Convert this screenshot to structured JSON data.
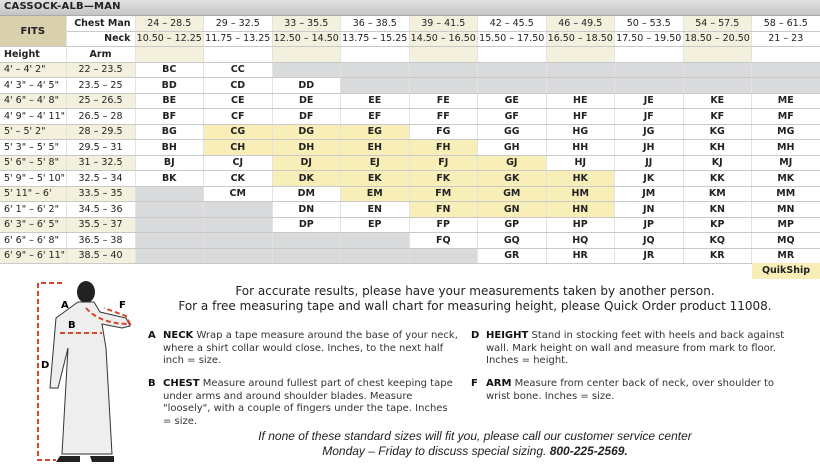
{
  "title": "CASSOCK-ALB—MAN",
  "colors": {
    "tan": "#f4f0de",
    "fits": "#d9d0ae",
    "quikship": "#f8efb8",
    "unavailable": "#d9dadc",
    "dashed_line": "#d9472b"
  },
  "table": {
    "fits_label": "FITS",
    "chest_label": "Chest Man",
    "neck_label": "Neck",
    "height_label": "Height",
    "arm_label": "Arm",
    "chest": [
      "24 – 28.5",
      "29 – 32.5",
      "33 – 35.5",
      "36 – 38.5",
      "39 – 41.5",
      "42 – 45.5",
      "46 – 49.5",
      "50 – 53.5",
      "54 – 57.5",
      "58 – 61.5"
    ],
    "neck": [
      "10.50 – 12.25",
      "11.75 – 13.25",
      "12.50 – 14.50",
      "13.75 – 15.25",
      "14.50 – 16.50",
      "15.50 – 17.50",
      "16.50 – 18.50",
      "17.50 – 19.50",
      "18.50 – 20.50",
      "21 – 23"
    ],
    "rows": [
      {
        "height": "4' – 4' 2\"",
        "arm": "22 – 23.5",
        "sizes": [
          "BC",
          "CC",
          null,
          null,
          null,
          null,
          null,
          null,
          null,
          null
        ]
      },
      {
        "height": "4' 3\" – 4' 5\"",
        "arm": "23.5 – 25",
        "sizes": [
          "BD",
          "CD",
          "DD",
          null,
          null,
          null,
          null,
          null,
          null,
          null
        ]
      },
      {
        "height": "4' 6\" – 4' 8\"",
        "arm": "25 – 26.5",
        "sizes": [
          "BE",
          "CE",
          "DE",
          "EE",
          "FE",
          "GE",
          "HE",
          "JE",
          "KE",
          "ME"
        ]
      },
      {
        "height": "4' 9\" – 4' 11\"",
        "arm": "26.5 – 28",
        "sizes": [
          "BF",
          "CF",
          "DF",
          "EF",
          "FF",
          "GF",
          "HF",
          "JF",
          "KF",
          "MF"
        ]
      },
      {
        "height": "5' – 5' 2\"",
        "arm": "28 – 29.5",
        "sizes": [
          "BG",
          "CG",
          "DG",
          "EG",
          "FG",
          "GG",
          "HG",
          "JG",
          "KG",
          "MG"
        ]
      },
      {
        "height": "5' 3\" – 5' 5\"",
        "arm": "29.5 – 31",
        "sizes": [
          "BH",
          "CH",
          "DH",
          "EH",
          "FH",
          "GH",
          "HH",
          "JH",
          "KH",
          "MH"
        ]
      },
      {
        "height": "5' 6\" – 5' 8\"",
        "arm": "31 – 32.5",
        "sizes": [
          "BJ",
          "CJ",
          "DJ",
          "EJ",
          "FJ",
          "GJ",
          "HJ",
          "JJ",
          "KJ",
          "MJ"
        ]
      },
      {
        "height": "5' 9\" – 5' 10\"",
        "arm": "32.5 – 34",
        "sizes": [
          "BK",
          "CK",
          "DK",
          "EK",
          "FK",
          "GK",
          "HK",
          "JK",
          "KK",
          "MK"
        ]
      },
      {
        "height": "5' 11\" – 6'",
        "arm": "33.5 – 35",
        "sizes": [
          null,
          "CM",
          "DM",
          "EM",
          "FM",
          "GM",
          "HM",
          "JM",
          "KM",
          "MM"
        ]
      },
      {
        "height": "6' 1\" – 6' 2\"",
        "arm": "34.5 – 36",
        "sizes": [
          null,
          null,
          "DN",
          "EN",
          "FN",
          "GN",
          "HN",
          "JN",
          "KN",
          "MN"
        ]
      },
      {
        "height": "6' 3\" – 6' 5\"",
        "arm": "35.5 – 37",
        "sizes": [
          null,
          null,
          "DP",
          "EP",
          "FP",
          "GP",
          "HP",
          "JP",
          "KP",
          "MP"
        ]
      },
      {
        "height": "6' 6\" – 6' 8\"",
        "arm": "36.5 – 38",
        "sizes": [
          null,
          null,
          null,
          null,
          "FQ",
          "GQ",
          "HQ",
          "JQ",
          "KQ",
          "MQ"
        ]
      },
      {
        "height": "6' 9\" – 6' 11\"",
        "arm": "38.5 – 40",
        "sizes": [
          null,
          null,
          null,
          null,
          null,
          "GR",
          "HR",
          "JR",
          "KR",
          "MR"
        ]
      }
    ],
    "quikship_sizes": [
      "CG",
      "DG",
      "EG",
      "CH",
      "DH",
      "EH",
      "FH",
      "DJ",
      "EJ",
      "FJ",
      "GJ",
      "DK",
      "EK",
      "FK",
      "GK",
      "HK",
      "EM",
      "FM",
      "GM",
      "HM",
      "FN",
      "GN",
      "HN"
    ],
    "quikship_label": "QuikShip"
  },
  "figure": {
    "labels": [
      "A",
      "B",
      "D",
      "F"
    ]
  },
  "intro": {
    "line1": "For accurate results, please have your measurements taken by another person.",
    "line2": "For a free measuring tape and wall chart for measuring height, please Quick Order product 11008."
  },
  "instructions": [
    {
      "letter": "A",
      "name": "NECK",
      "text": "Wrap a tape measure around the base of your neck, where a shirt collar would close. Inches, to the next half inch = size."
    },
    {
      "letter": "B",
      "name": "CHEST",
      "text": "Measure around fullest part of chest keeping tape under arms and around shoulder blades. Measure \"loosely\", with a couple of fingers under the tape. Inches = size."
    },
    {
      "letter": "D",
      "name": "HEIGHT",
      "text": "Stand in stocking feet with heels and back against wall. Mark height on wall and measure from mark to floor. Inches = height."
    },
    {
      "letter": "F",
      "name": "ARM",
      "text": "Measure from center back of neck, over shoulder to wrist bone. Inches = size."
    }
  ],
  "footer": {
    "line1": "If none of these standard sizes will fit you, please call our customer service center",
    "line2": "Monday – Friday to discuss special sizing.",
    "phone": "800-225-2569."
  }
}
